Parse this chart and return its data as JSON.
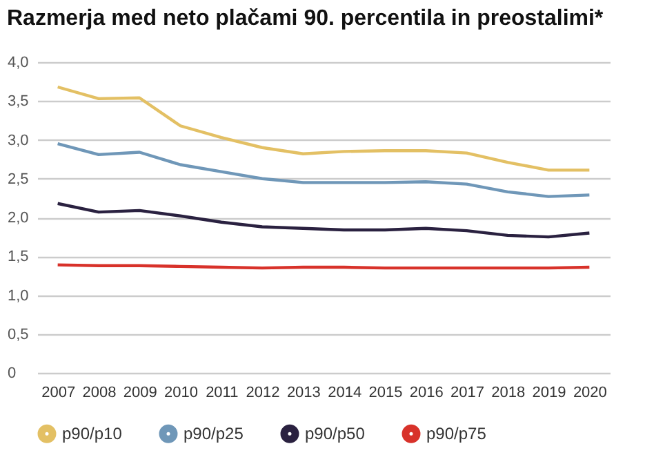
{
  "chart_data": {
    "type": "line",
    "title": "Razmerja med neto plačami 90. percentila in preostalimi*",
    "categories": [
      "2007",
      "2008",
      "2009",
      "2010",
      "2011",
      "2012",
      "2013",
      "2014",
      "2015",
      "2016",
      "2017",
      "2018",
      "2019",
      "2020"
    ],
    "series": [
      {
        "name": "p90/p10",
        "color": "#e3c064",
        "values": [
          3.68,
          3.53,
          3.54,
          3.18,
          3.03,
          2.9,
          2.82,
          2.85,
          2.86,
          2.86,
          2.83,
          2.71,
          2.61,
          2.61
        ]
      },
      {
        "name": "p90/p25",
        "color": "#6f97b8",
        "values": [
          2.95,
          2.81,
          2.84,
          2.68,
          2.59,
          2.5,
          2.45,
          2.45,
          2.45,
          2.46,
          2.43,
          2.33,
          2.27,
          2.29
        ]
      },
      {
        "name": "p90/p50",
        "color": "#2a2140",
        "values": [
          2.18,
          2.07,
          2.09,
          2.02,
          1.94,
          1.88,
          1.86,
          1.84,
          1.84,
          1.86,
          1.83,
          1.77,
          1.75,
          1.8
        ]
      },
      {
        "name": "p90/p75",
        "color": "#d8322a",
        "values": [
          1.39,
          1.38,
          1.38,
          1.37,
          1.36,
          1.35,
          1.36,
          1.36,
          1.35,
          1.35,
          1.35,
          1.35,
          1.35,
          1.36
        ]
      }
    ],
    "ylim": [
      0,
      4
    ],
    "yticks": [
      {
        "value": 0,
        "label": "0"
      },
      {
        "value": 0.5,
        "label": "0,5"
      },
      {
        "value": 1,
        "label": "1,0"
      },
      {
        "value": 1.5,
        "label": "1,5"
      },
      {
        "value": 2,
        "label": "2,0"
      },
      {
        "value": 2.5,
        "label": "2,5"
      },
      {
        "value": 3,
        "label": "3,0"
      },
      {
        "value": 3.5,
        "label": "3,5"
      },
      {
        "value": 4,
        "label": "4,0"
      }
    ],
    "grid": "y",
    "legend": "bottom",
    "marker": "none",
    "line_style": "solid"
  }
}
